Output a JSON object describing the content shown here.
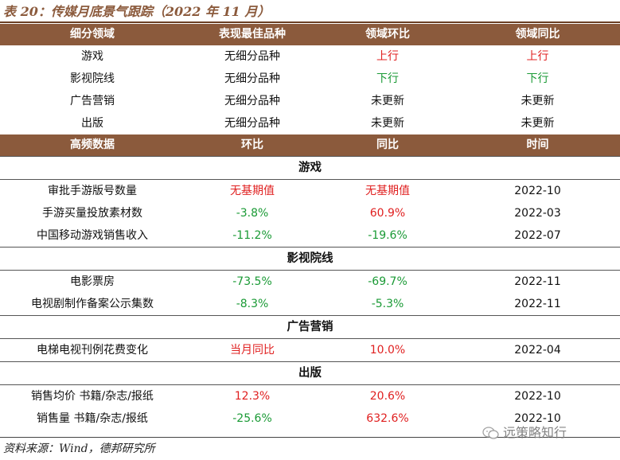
{
  "caption": "表 20：传媒月底景气跟踪（2022 年 11 月）",
  "section1": {
    "headers": [
      "细分领域",
      "表现最佳品种",
      "领域环比",
      "领域同比"
    ],
    "rows": [
      {
        "cells": [
          "游戏",
          "无细分品种",
          "上行",
          "上行"
        ],
        "colors": [
          "",
          "",
          "red",
          "red"
        ]
      },
      {
        "cells": [
          "影视院线",
          "无细分品种",
          "下行",
          "下行"
        ],
        "colors": [
          "",
          "",
          "green",
          "green"
        ]
      },
      {
        "cells": [
          "广告营销",
          "无细分品种",
          "未更新",
          "未更新"
        ],
        "colors": [
          "",
          "",
          "",
          ""
        ]
      },
      {
        "cells": [
          "出版",
          "无细分品种",
          "未更新",
          "未更新"
        ],
        "colors": [
          "",
          "",
          "",
          ""
        ]
      }
    ]
  },
  "section2": {
    "headers": [
      "高频数据",
      "环比",
      "同比",
      "时间"
    ],
    "groups": [
      {
        "title": "游戏",
        "rows": [
          {
            "cells": [
              "审批手游版号数量",
              "无基期值",
              "无基期值",
              "2022-10"
            ],
            "colors": [
              "",
              "red",
              "red",
              ""
            ]
          },
          {
            "cells": [
              "手游买量投放素材数",
              "-3.8%",
              "60.9%",
              "2022-03"
            ],
            "colors": [
              "",
              "green",
              "red",
              ""
            ]
          },
          {
            "cells": [
              "中国移动游戏销售收入",
              "-11.2%",
              "-19.6%",
              "2022-07"
            ],
            "colors": [
              "",
              "green",
              "green",
              ""
            ]
          }
        ]
      },
      {
        "title": "影视院线",
        "rows": [
          {
            "cells": [
              "电影票房",
              "-73.5%",
              "-69.7%",
              "2022-11"
            ],
            "colors": [
              "",
              "green",
              "green",
              ""
            ]
          },
          {
            "cells": [
              "电视剧制作备案公示集数",
              "-8.3%",
              "-5.3%",
              "2022-11"
            ],
            "colors": [
              "",
              "green",
              "green",
              ""
            ]
          }
        ]
      },
      {
        "title": "广告营销",
        "rows": [
          {
            "cells": [
              "电梯电视刊例花费变化",
              "当月同比",
              "10.0%",
              "2022-04"
            ],
            "colors": [
              "",
              "red",
              "red",
              ""
            ]
          }
        ]
      },
      {
        "title": "出版",
        "rows": [
          {
            "cells": [
              "销售均价 书籍/杂志/报纸",
              "12.3%",
              "20.6%",
              "2022-10"
            ],
            "colors": [
              "",
              "red",
              "red",
              ""
            ]
          },
          {
            "cells": [
              "销售量 书籍/杂志/报纸",
              "-25.6%",
              "632.6%",
              "2022-10"
            ],
            "colors": [
              "",
              "green",
              "red",
              ""
            ]
          }
        ]
      }
    ]
  },
  "source": "资料来源：Wind，德邦研究所",
  "watermark": "远策略知行",
  "colors": {
    "header_bg": "#8B5A3C",
    "up": "#e02020",
    "down": "#1a9a35"
  }
}
